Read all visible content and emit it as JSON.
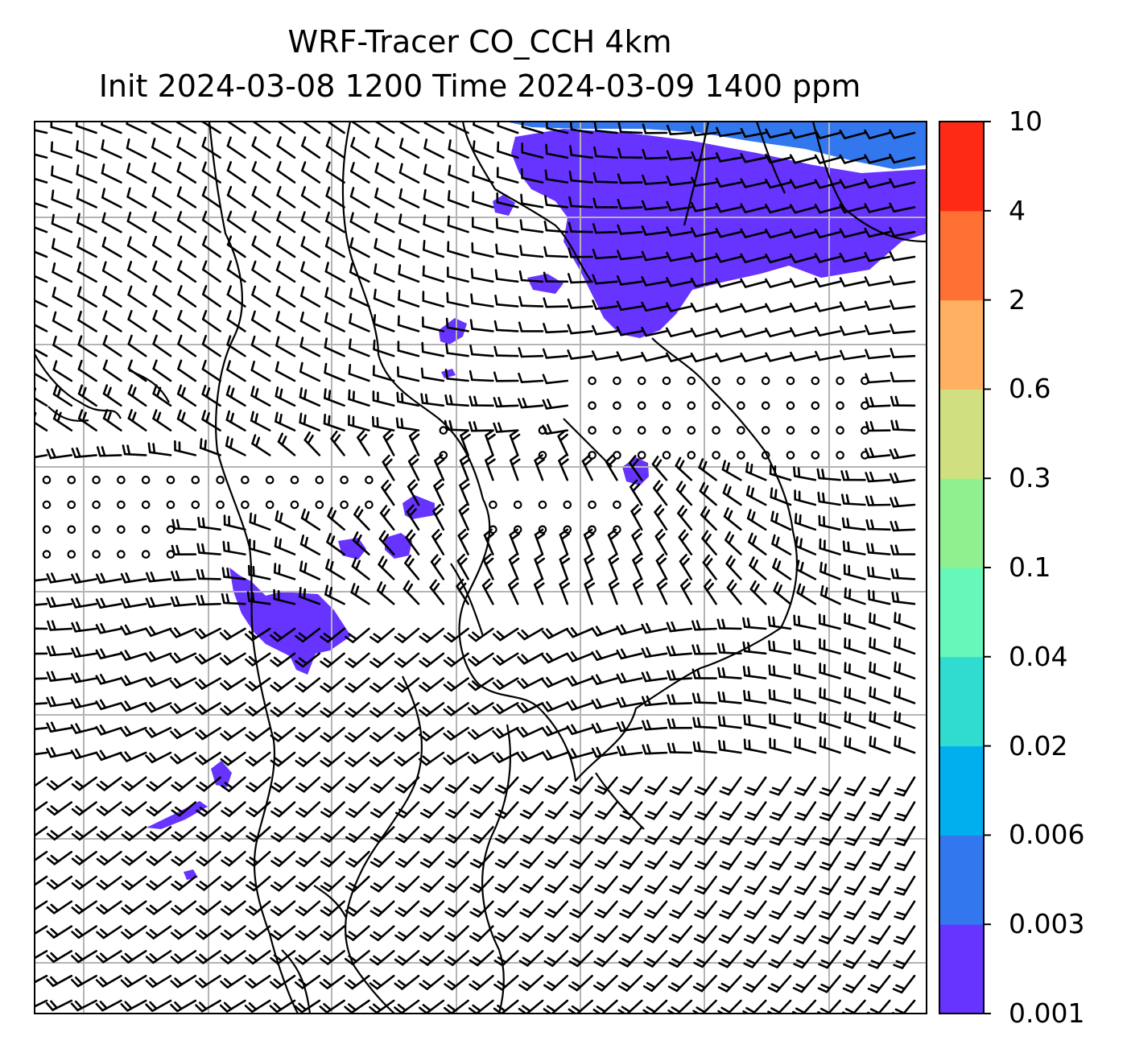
{
  "title_line1": "WRF-Tracer CO_CCH 4km",
  "title_line2": "Init 2024-03-08 1200 Time 2024-03-09 1400 ppm",
  "colorbar": {
    "levels": [
      "0.001",
      "0.003",
      "0.006",
      "0.02",
      "0.04",
      "0.1",
      "0.3",
      "0.6",
      "2",
      "4",
      "10"
    ],
    "colors": [
      "#6633ff",
      "#3377ee",
      "#00b0ee",
      "#30dcd0",
      "#66f8bb",
      "#90f090",
      "#d0e080",
      "#ffb060",
      "#ff7035",
      "#ff2a15"
    ]
  },
  "map": {
    "plume_color": "#6633ff",
    "plume_color_mid": "#3377ee",
    "gridline_color": "#b4b4b4",
    "coastline_color": "#000000"
  }
}
